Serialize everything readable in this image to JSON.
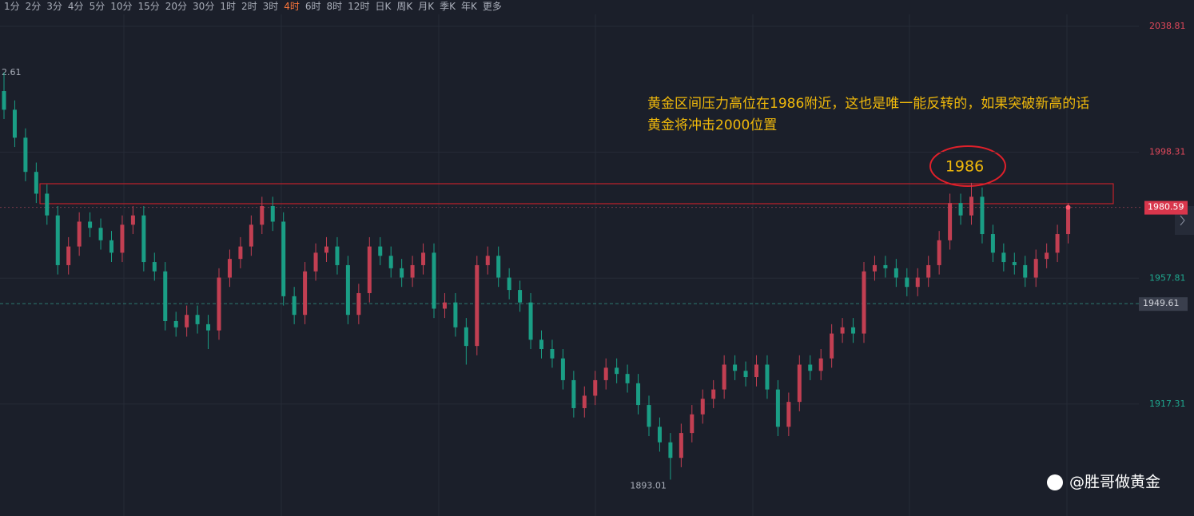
{
  "toolbar": {
    "items": [
      {
        "label": "1分"
      },
      {
        "label": "2分"
      },
      {
        "label": "3分"
      },
      {
        "label": "4分"
      },
      {
        "label": "5分"
      },
      {
        "label": "10分"
      },
      {
        "label": "15分"
      },
      {
        "label": "20分"
      },
      {
        "label": "30分"
      },
      {
        "label": "1时"
      },
      {
        "label": "2时"
      },
      {
        "label": "3时"
      },
      {
        "label": "4时",
        "active": true
      },
      {
        "label": "6时"
      },
      {
        "label": "8时"
      },
      {
        "label": "12时"
      },
      {
        "label": "日K"
      },
      {
        "label": "周K"
      },
      {
        "label": "月K"
      },
      {
        "label": "季K"
      },
      {
        "label": "年K"
      },
      {
        "label": "更多"
      }
    ]
  },
  "chart_data": {
    "type": "candlestick",
    "up_color": "#c23f52",
    "down_color": "#1a9e85",
    "ylim": [
      1881.3,
      2047.3
    ],
    "yticks": [
      2038.81,
      1998.31,
      1957.81,
      1917.31
    ],
    "grid": true,
    "last_price": 1980.59,
    "ref_price": 1949.61,
    "high_label": "2.61",
    "annotation": [
      "黄金区间压力高位在1986附近，这也是唯一能反转的，如果突破新高的话",
      "黄金将冲击2000位置"
    ],
    "zone_label": "1986",
    "watermark": "@胜哥做黄金",
    "open": [
      2018,
      2012,
      2003,
      1992,
      1985,
      1978,
      1962,
      1968,
      1976,
      1974,
      1970,
      1966,
      1975,
      1978,
      1963,
      1960,
      1944,
      1942,
      1946,
      1943,
      1941,
      1958,
      1964,
      1968,
      1975,
      1981,
      1976,
      1952,
      1946,
      1960,
      1966,
      1968,
      1962,
      1946,
      1953,
      1968,
      1965,
      1961,
      1958,
      1962,
      1966,
      1948,
      1950,
      1942,
      1936,
      1962,
      1965,
      1958,
      1954,
      1950,
      1938,
      1935,
      1932,
      1925,
      1916,
      1920,
      1925,
      1929,
      1927,
      1924,
      1917,
      1910,
      1905,
      1900,
      1908,
      1914,
      1919,
      1922,
      1930,
      1928,
      1926,
      1930,
      1922,
      1910,
      1918,
      1930,
      1928,
      1932,
      1940,
      1942,
      1940,
      1960,
      1962,
      1961,
      1958,
      1955,
      1958,
      1962,
      1970,
      1982,
      1978,
      1984,
      1972,
      1966,
      1963,
      1962,
      1958,
      1964,
      1966,
      1972
    ],
    "high": [
      2024,
      2015,
      2006,
      1995,
      1988,
      1981,
      1971,
      1979,
      1979,
      1977,
      1973,
      1978,
      1981,
      1981,
      1966,
      1963,
      1947,
      1949,
      1949,
      1946,
      1961,
      1967,
      1971,
      1978,
      1984,
      1984,
      1979,
      1955,
      1963,
      1969,
      1971,
      1971,
      1965,
      1956,
      1971,
      1971,
      1968,
      1964,
      1965,
      1969,
      1969,
      1953,
      1953,
      1945,
      1965,
      1968,
      1968,
      1961,
      1957,
      1953,
      1941,
      1938,
      1935,
      1928,
      1923,
      1928,
      1932,
      1932,
      1930,
      1927,
      1920,
      1913,
      1908,
      1911,
      1917,
      1922,
      1925,
      1933,
      1933,
      1931,
      1933,
      1933,
      1925,
      1921,
      1933,
      1933,
      1935,
      1943,
      1945,
      1945,
      1963,
      1965,
      1965,
      1964,
      1961,
      1961,
      1965,
      1973,
      1985,
      1985,
      1988.5,
      1987,
      1975,
      1969,
      1966,
      1965,
      1967,
      1969,
      1975,
      1982
    ],
    "low": [
      2009,
      2000,
      1989,
      1982,
      1975,
      1959,
      1959,
      1965,
      1971,
      1967,
      1963,
      1963,
      1972,
      1960,
      1957,
      1941,
      1939,
      1939,
      1940,
      1935,
      1938,
      1955,
      1961,
      1965,
      1972,
      1973,
      1949,
      1943,
      1943,
      1957,
      1963,
      1959,
      1943,
      1943,
      1950,
      1962,
      1958,
      1955,
      1955,
      1959,
      1945,
      1945,
      1939,
      1930,
      1933,
      1959,
      1955,
      1951,
      1947,
      1935,
      1932,
      1929,
      1922,
      1913,
      1913,
      1917,
      1922,
      1924,
      1921,
      1914,
      1907,
      1902,
      1893.01,
      1897,
      1905,
      1911,
      1916,
      1919,
      1925,
      1923,
      1923,
      1919,
      1907,
      1907,
      1915,
      1925,
      1925,
      1929,
      1937,
      1937,
      1937,
      1957,
      1958,
      1955,
      1952,
      1952,
      1955,
      1959,
      1967,
      1975,
      1975,
      1969,
      1963,
      1960,
      1959,
      1955,
      1955,
      1961,
      1963,
      1969
    ],
    "close": [
      2012,
      2003,
      1992,
      1985,
      1978,
      1962,
      1968,
      1976,
      1974,
      1970,
      1966,
      1975,
      1978,
      1963,
      1960,
      1944,
      1942,
      1946,
      1943,
      1941,
      1958,
      1964,
      1968,
      1975,
      1981,
      1976,
      1952,
      1946,
      1960,
      1966,
      1968,
      1962,
      1946,
      1953,
      1968,
      1965,
      1961,
      1958,
      1962,
      1966,
      1948,
      1950,
      1942,
      1936,
      1962,
      1965,
      1958,
      1954,
      1950,
      1938,
      1935,
      1932,
      1925,
      1916,
      1920,
      1925,
      1929,
      1927,
      1924,
      1917,
      1910,
      1905,
      1900,
      1908,
      1914,
      1919,
      1922,
      1930,
      1928,
      1926,
      1930,
      1922,
      1910,
      1918,
      1930,
      1928,
      1932,
      1940,
      1942,
      1940,
      1960,
      1962,
      1961,
      1958,
      1955,
      1958,
      1962,
      1970,
      1982,
      1978,
      1984,
      1972,
      1966,
      1963,
      1962,
      1958,
      1964,
      1966,
      1972,
      1980.59
    ]
  }
}
